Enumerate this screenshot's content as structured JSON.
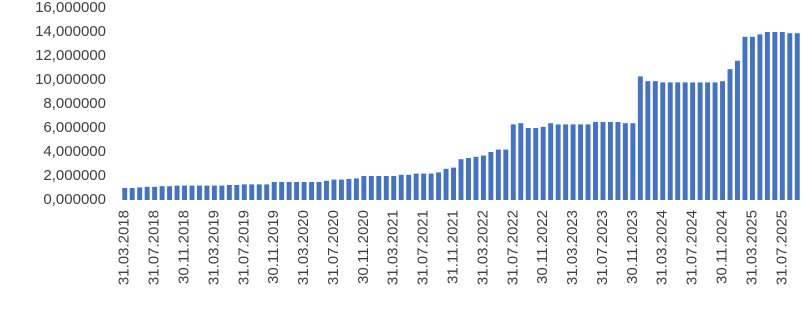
{
  "chart_data": {
    "type": "bar",
    "color": "#4472c4",
    "grid": false,
    "ylim": [
      0,
      16
    ],
    "yticks": [
      {
        "value": 0,
        "label": "0,000000"
      },
      {
        "value": 2,
        "label": "2,000000"
      },
      {
        "value": 4,
        "label": "4,000000"
      },
      {
        "value": 6,
        "label": "6,000000"
      },
      {
        "value": 8,
        "label": "8,000000"
      },
      {
        "value": 10,
        "label": "10,000000"
      },
      {
        "value": 12,
        "label": "12,000000"
      },
      {
        "value": 14,
        "label": "14,000000"
      },
      {
        "value": 16,
        "label": "16,000000"
      }
    ],
    "categories": [
      "31.03.2018",
      null,
      null,
      null,
      "31.07.2018",
      null,
      null,
      null,
      "30.11.2018",
      null,
      null,
      null,
      "31.03.2019",
      null,
      null,
      null,
      "31.07.2019",
      null,
      null,
      null,
      "30.11.2019",
      null,
      null,
      null,
      "31.03.2020",
      null,
      null,
      null,
      "31.07.2020",
      null,
      null,
      null,
      "30.11.2020",
      null,
      null,
      null,
      "31.03.2021",
      null,
      null,
      null,
      "31.07.2021",
      null,
      null,
      null,
      "31.11.2021",
      null,
      null,
      null,
      "31.03.2022",
      null,
      null,
      null,
      "31.07.2022",
      null,
      null,
      null,
      "30.11.2022",
      null,
      null,
      null,
      "31.03.2023",
      null,
      null,
      null,
      "31.07.2023",
      null,
      null,
      null,
      "30.11.2023",
      null,
      null,
      null,
      "31.03.2024",
      null,
      null,
      null,
      "31.07.2024",
      null,
      null,
      null,
      "30.11.2024",
      null,
      null,
      null,
      "31.03.2025",
      null,
      null,
      null,
      "31.07.2025",
      null,
      null
    ],
    "values": [
      1.0,
      1.0,
      1.05,
      1.1,
      1.1,
      1.15,
      1.15,
      1.2,
      1.2,
      1.2,
      1.2,
      1.2,
      1.2,
      1.2,
      1.25,
      1.25,
      1.3,
      1.3,
      1.3,
      1.3,
      1.5,
      1.5,
      1.5,
      1.5,
      1.5,
      1.5,
      1.5,
      1.6,
      1.7,
      1.7,
      1.75,
      1.8,
      2.0,
      2.0,
      2.0,
      2.0,
      2.0,
      2.1,
      2.1,
      2.2,
      2.2,
      2.2,
      2.3,
      2.6,
      2.7,
      3.4,
      3.5,
      3.6,
      3.7,
      4.0,
      4.2,
      4.2,
      6.3,
      6.4,
      6.0,
      6.0,
      6.1,
      6.4,
      6.3,
      6.3,
      6.3,
      6.3,
      6.3,
      6.5,
      6.5,
      6.5,
      6.5,
      6.4,
      6.4,
      10.3,
      9.9,
      9.9,
      9.8,
      9.8,
      9.8,
      9.8,
      9.8,
      9.8,
      9.8,
      9.8,
      9.9,
      10.9,
      11.6,
      13.6,
      13.6,
      13.8,
      14.0,
      14.0,
      14.0,
      13.9,
      13.9
    ]
  }
}
